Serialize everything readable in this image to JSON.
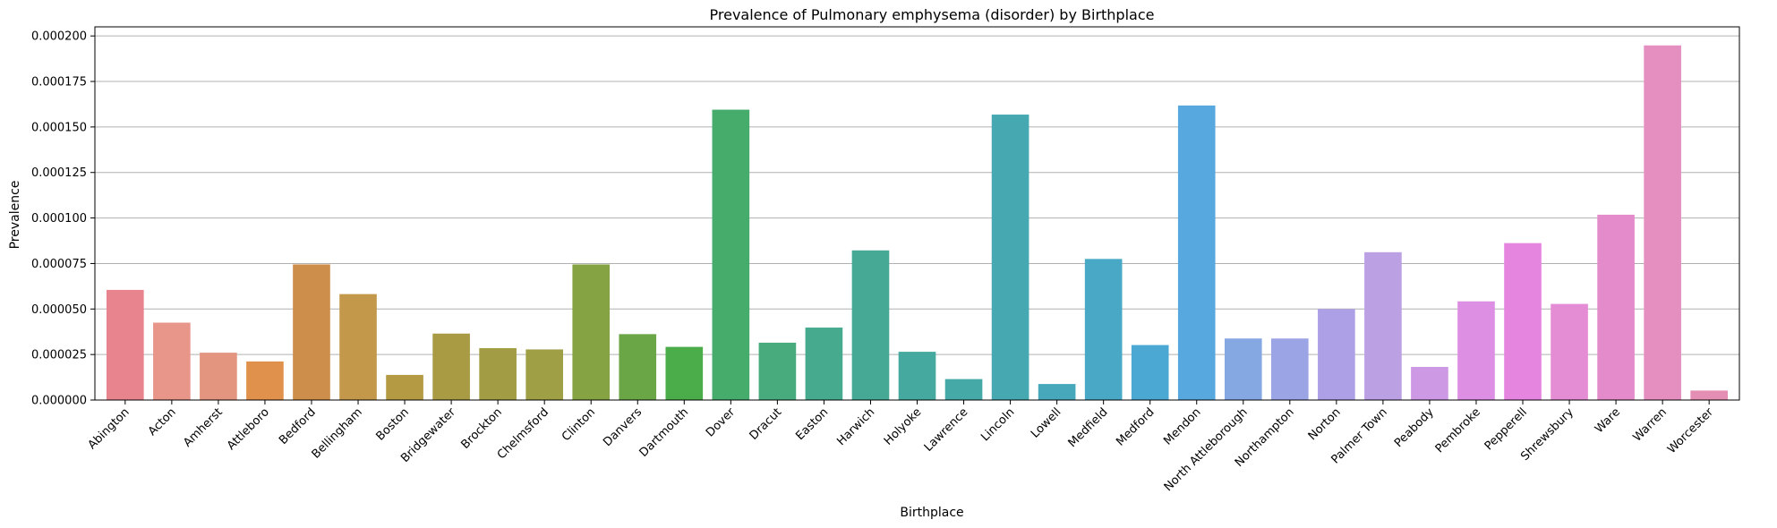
{
  "chart_data": {
    "type": "bar",
    "title": "Prevalence of Pulmonary emphysema (disorder) by Birthplace",
    "xlabel": "Birthplace",
    "ylabel": "Prevalence",
    "ylim": [
      0,
      0.000205
    ],
    "yticks": [
      "0.000000",
      "0.000025",
      "0.000050",
      "0.000075",
      "0.000100",
      "0.000125",
      "0.000150",
      "0.000175",
      "0.000200"
    ],
    "ytick_values": [
      0,
      2.5e-05,
      5e-05,
      7.5e-05,
      0.0001,
      0.000125,
      0.00015,
      0.000175,
      0.0002
    ],
    "grid": "horizontal",
    "categories": [
      "Abington",
      "Acton",
      "Amherst",
      "Attleboro",
      "Bedford",
      "Bellingham",
      "Boston",
      "Bridgewater",
      "Brockton",
      "Chelmsford",
      "Clinton",
      "Danvers",
      "Dartmouth",
      "Dover",
      "Dracut",
      "Easton",
      "Harwich",
      "Holyoke",
      "Lawrence",
      "Lincoln",
      "Lowell",
      "Medfield",
      "Medford",
      "Mendon",
      "North Attleborough",
      "Northampton",
      "Norton",
      "Palmer Town",
      "Peabody",
      "Pembroke",
      "Pepperell",
      "Shrewsbury",
      "Ware",
      "Warren",
      "Worcester"
    ],
    "values": [
      6.05e-05,
      4.25e-05,
      2.6e-05,
      2.12e-05,
      7.45e-05,
      5.82e-05,
      1.38e-05,
      3.65e-05,
      2.85e-05,
      2.78e-05,
      7.45e-05,
      3.62e-05,
      2.92e-05,
      0.0001595,
      3.15e-05,
      3.98e-05,
      8.22e-05,
      2.65e-05,
      1.15e-05,
      0.0001568,
      8.8e-06,
      7.75e-05,
      3.02e-05,
      0.0001618,
      3.38e-05,
      3.38e-05,
      5e-05,
      8.12e-05,
      1.82e-05,
      5.42e-05,
      8.62e-05,
      5.28e-05,
      0.0001018,
      0.0001948,
      5.2e-06
    ],
    "colors": [
      "#e8848e",
      "#e8958a",
      "#e39580",
      "#e0914b",
      "#cc8e4a",
      "#c4984a",
      "#b39a43",
      "#a89b44",
      "#a29d44",
      "#9fa045",
      "#86a344",
      "#6ba646",
      "#4bac4a",
      "#46ac6c",
      "#47ab7e",
      "#46aa8e",
      "#45a996",
      "#45a9a0",
      "#45a9a8",
      "#46a8b1",
      "#47a8bb",
      "#48a8c6",
      "#4ba8d2",
      "#58a8e0",
      "#85a8e2",
      "#9ba5e5",
      "#aea0e6",
      "#bba0e4",
      "#cd98e4",
      "#dd8fe4",
      "#e585e0",
      "#e48dd5",
      "#e48ccb",
      "#e48fbf",
      "#e48eb4"
    ]
  }
}
